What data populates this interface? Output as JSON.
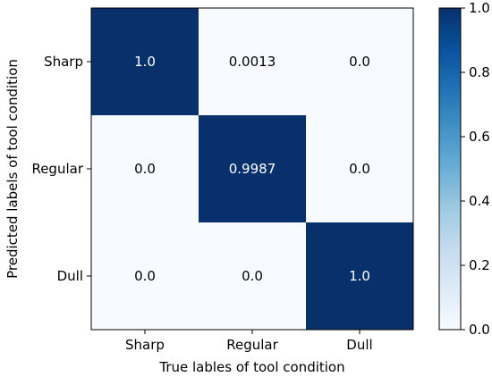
{
  "chart_data": {
    "type": "heatmap",
    "xlabel": "True lables of tool condition",
    "ylabel": "Predicted labels of tool condition",
    "x_categories": [
      "Sharp",
      "Regular",
      "Dull"
    ],
    "y_categories": [
      "Sharp",
      "Regular",
      "Dull"
    ],
    "values": [
      [
        1.0,
        0.0013,
        0.0
      ],
      [
        0.0,
        0.9987,
        0.0
      ],
      [
        0.0,
        0.0,
        1.0
      ]
    ],
    "cell_labels": [
      [
        "1.0",
        "0.0013",
        "0.0"
      ],
      [
        "0.0",
        "0.9987",
        "0.0"
      ],
      [
        "0.0",
        "0.0",
        "1.0"
      ]
    ],
    "colormap": "Blues",
    "colorbar": {
      "range": [
        0.0,
        1.0
      ],
      "ticks": [
        0.0,
        0.2,
        0.4,
        0.6,
        0.8,
        1.0
      ],
      "tick_labels": [
        "0.0",
        "0.2",
        "0.4",
        "0.6",
        "0.8",
        "1.0"
      ]
    },
    "colors": {
      "low": "#f7fbff",
      "high": "#08306b",
      "text_on_dark": "#ffffff",
      "text_on_light": "#000000"
    }
  }
}
